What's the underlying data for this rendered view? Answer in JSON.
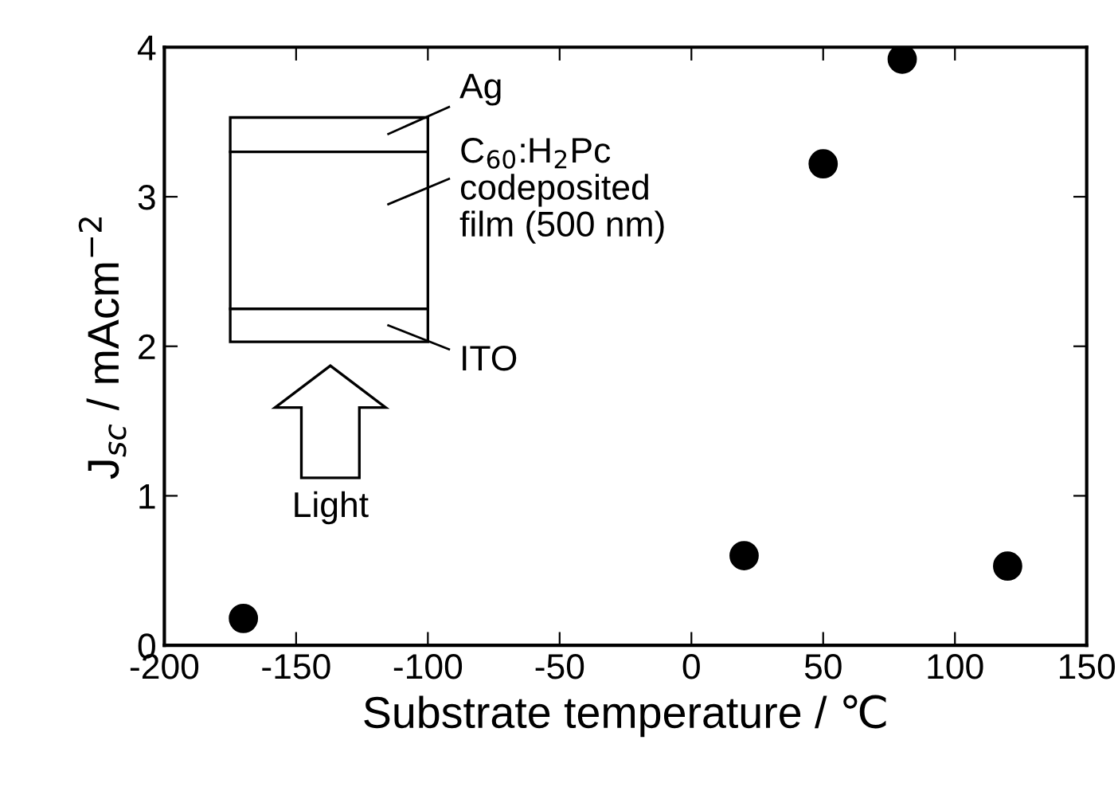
{
  "chart_data": {
    "type": "scatter",
    "xlabel": "Substrate temperature / ℃",
    "ylabel": "J$_{sc}$ / mAcm$^{−2}$",
    "x": [
      -170,
      20,
      50,
      80,
      120
    ],
    "values": [
      0.18,
      0.6,
      3.22,
      3.92,
      0.53
    ],
    "color": "#000000",
    "marker": "circle",
    "xlim": [
      -200,
      150
    ],
    "xticks": [
      -200,
      -150,
      -100,
      -50,
      0,
      50,
      100,
      150
    ],
    "ylim": [
      0,
      4
    ],
    "yticks": [
      0,
      1,
      2,
      3,
      4
    ],
    "grid": false,
    "legend": false,
    "annotations": [
      "Ag",
      "C$_{60}$:H$_{2}$Pc\ncodeposited\nfilm (500 nm)",
      "ITO",
      "Light"
    ]
  }
}
